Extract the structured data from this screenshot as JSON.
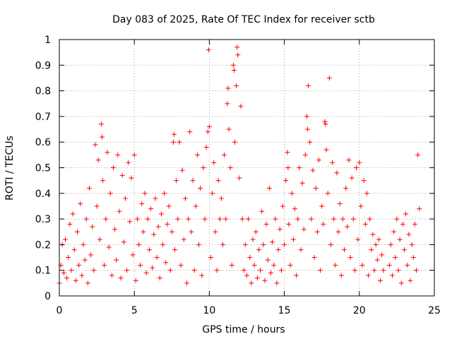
{
  "chart_data": {
    "type": "scatter",
    "title": "Day 083 of 2025, Rate Of TEC Index for receiver sctb",
    "xlabel": "GPS time / hours",
    "ylabel": "ROTI / TECUs",
    "xlim": [
      0,
      25
    ],
    "ylim": [
      0,
      1
    ],
    "x_ticks": [
      "0",
      "5",
      "10",
      "15",
      "20",
      "25"
    ],
    "y_ticks": [
      "0",
      "0.1",
      "0.2",
      "0.3",
      "0.4",
      "0.5",
      "0.6",
      "0.7",
      "0.8",
      "0.9",
      "1"
    ],
    "grid": true,
    "legend": "none",
    "marker": "plus",
    "color": "#ff0000",
    "series": [
      {
        "values": [
          [
            0.0,
            0.05
          ],
          [
            0.1,
            0.12
          ],
          [
            0.2,
            0.2
          ],
          [
            0.3,
            0.09
          ],
          [
            0.4,
            0.22
          ],
          [
            0.5,
            0.07
          ],
          [
            0.6,
            0.15
          ],
          [
            0.7,
            0.28
          ],
          [
            0.8,
            0.1
          ],
          [
            0.9,
            0.32
          ],
          [
            1.0,
            0.18
          ],
          [
            1.1,
            0.06
          ],
          [
            1.2,
            0.25
          ],
          [
            1.3,
            0.12
          ],
          [
            1.4,
            0.36
          ],
          [
            1.5,
            0.08
          ],
          [
            1.6,
            0.2
          ],
          [
            1.7,
            0.14
          ],
          [
            1.8,
            0.3
          ],
          [
            1.9,
            0.05
          ],
          [
            2.0,
            0.42
          ],
          [
            2.1,
            0.16
          ],
          [
            2.2,
            0.27
          ],
          [
            2.3,
            0.1
          ],
          [
            2.4,
            0.59
          ],
          [
            2.5,
            0.35
          ],
          [
            2.6,
            0.53
          ],
          [
            2.7,
            0.22
          ],
          [
            2.8,
            0.67
          ],
          [
            2.85,
            0.62
          ],
          [
            2.9,
            0.45
          ],
          [
            3.0,
            0.12
          ],
          [
            3.1,
            0.3
          ],
          [
            3.2,
            0.56
          ],
          [
            3.3,
            0.19
          ],
          [
            3.4,
            0.4
          ],
          [
            3.5,
            0.08
          ],
          [
            3.6,
            0.5
          ],
          [
            3.7,
            0.26
          ],
          [
            3.8,
            0.14
          ],
          [
            3.9,
            0.55
          ],
          [
            4.0,
            0.33
          ],
          [
            4.1,
            0.07
          ],
          [
            4.2,
            0.47
          ],
          [
            4.3,
            0.21
          ],
          [
            4.4,
            0.38
          ],
          [
            4.5,
            0.1
          ],
          [
            4.6,
            0.52
          ],
          [
            4.7,
            0.29
          ],
          [
            4.8,
            0.46
          ],
          [
            4.9,
            0.16
          ],
          [
            5.0,
            0.55
          ],
          [
            5.1,
            0.06
          ],
          [
            5.2,
            0.3
          ],
          [
            5.3,
            0.2
          ],
          [
            5.4,
            0.12
          ],
          [
            5.5,
            0.36
          ],
          [
            5.6,
            0.25
          ],
          [
            5.7,
            0.4
          ],
          [
            5.8,
            0.09
          ],
          [
            5.9,
            0.3
          ],
          [
            6.0,
            0.18
          ],
          [
            6.1,
            0.34
          ],
          [
            6.2,
            0.11
          ],
          [
            6.3,
            0.24
          ],
          [
            6.4,
            0.38
          ],
          [
            6.5,
            0.15
          ],
          [
            6.6,
            0.27
          ],
          [
            6.7,
            0.07
          ],
          [
            6.8,
            0.32
          ],
          [
            6.9,
            0.2
          ],
          [
            7.0,
            0.4
          ],
          [
            7.1,
            0.13
          ],
          [
            7.2,
            0.28
          ],
          [
            7.3,
            0.35
          ],
          [
            7.4,
            0.1
          ],
          [
            7.5,
            0.25
          ],
          [
            7.6,
            0.6
          ],
          [
            7.65,
            0.63
          ],
          [
            7.7,
            0.18
          ],
          [
            7.8,
            0.45
          ],
          [
            7.9,
            0.3
          ],
          [
            8.0,
            0.6
          ],
          [
            8.1,
            0.12
          ],
          [
            8.2,
            0.49
          ],
          [
            8.3,
            0.22
          ],
          [
            8.4,
            0.38
          ],
          [
            8.5,
            0.05
          ],
          [
            8.6,
            0.3
          ],
          [
            8.7,
            0.64
          ],
          [
            8.8,
            0.25
          ],
          [
            8.9,
            0.45
          ],
          [
            9.0,
            0.1
          ],
          [
            9.1,
            0.35
          ],
          [
            9.2,
            0.55
          ],
          [
            9.3,
            0.2
          ],
          [
            9.4,
            0.42
          ],
          [
            9.5,
            0.08
          ],
          [
            9.6,
            0.5
          ],
          [
            9.7,
            0.3
          ],
          [
            9.8,
            0.58
          ],
          [
            9.9,
            0.64
          ],
          [
            9.95,
            0.96
          ],
          [
            10.0,
            0.66
          ],
          [
            10.1,
            0.15
          ],
          [
            10.2,
            0.4
          ],
          [
            10.3,
            0.52
          ],
          [
            10.4,
            0.25
          ],
          [
            10.5,
            0.1
          ],
          [
            10.6,
            0.45
          ],
          [
            10.7,
            0.3
          ],
          [
            10.8,
            0.38
          ],
          [
            10.9,
            0.2
          ],
          [
            11.0,
            0.55
          ],
          [
            11.1,
            0.3
          ],
          [
            11.2,
            0.75
          ],
          [
            11.25,
            0.81
          ],
          [
            11.3,
            0.65
          ],
          [
            11.4,
            0.5
          ],
          [
            11.5,
            0.12
          ],
          [
            11.6,
            0.9
          ],
          [
            11.65,
            0.88
          ],
          [
            11.7,
            0.6
          ],
          [
            11.8,
            0.82
          ],
          [
            11.85,
            0.97
          ],
          [
            11.9,
            0.94
          ],
          [
            12.0,
            0.46
          ],
          [
            12.1,
            0.74
          ],
          [
            12.2,
            0.3
          ],
          [
            12.3,
            0.1
          ],
          [
            12.4,
            0.2
          ],
          [
            12.5,
            0.08
          ],
          [
            12.6,
            0.3
          ],
          [
            12.7,
            0.15
          ],
          [
            12.8,
            0.05
          ],
          [
            12.9,
            0.22
          ],
          [
            13.0,
            0.12
          ],
          [
            13.1,
            0.25
          ],
          [
            13.2,
            0.07
          ],
          [
            13.3,
            0.18
          ],
          [
            13.4,
            0.1
          ],
          [
            13.5,
            0.33
          ],
          [
            13.6,
            0.2
          ],
          [
            13.7,
            0.06
          ],
          [
            13.8,
            0.28
          ],
          [
            13.9,
            0.14
          ],
          [
            14.0,
            0.42
          ],
          [
            14.1,
            0.09
          ],
          [
            14.2,
            0.21
          ],
          [
            14.3,
            0.12
          ],
          [
            14.4,
            0.3
          ],
          [
            14.5,
            0.05
          ],
          [
            14.6,
            0.18
          ],
          [
            14.7,
            0.26
          ],
          [
            14.8,
            0.1
          ],
          [
            14.9,
            0.35
          ],
          [
            15.0,
            0.2
          ],
          [
            15.1,
            0.45
          ],
          [
            15.2,
            0.56
          ],
          [
            15.25,
            0.5
          ],
          [
            15.3,
            0.28
          ],
          [
            15.4,
            0.12
          ],
          [
            15.5,
            0.4
          ],
          [
            15.6,
            0.22
          ],
          [
            15.7,
            0.34
          ],
          [
            15.8,
            0.08
          ],
          [
            15.9,
            0.3
          ],
          [
            16.0,
            0.5
          ],
          [
            16.1,
            0.18
          ],
          [
            16.2,
            0.44
          ],
          [
            16.3,
            0.26
          ],
          [
            16.4,
            0.55
          ],
          [
            16.5,
            0.7
          ],
          [
            16.55,
            0.65
          ],
          [
            16.6,
            0.82
          ],
          [
            16.7,
            0.6
          ],
          [
            16.8,
            0.3
          ],
          [
            16.9,
            0.49
          ],
          [
            17.0,
            0.15
          ],
          [
            17.1,
            0.42
          ],
          [
            17.2,
            0.25
          ],
          [
            17.3,
            0.53
          ],
          [
            17.4,
            0.1
          ],
          [
            17.5,
            0.35
          ],
          [
            17.6,
            0.28
          ],
          [
            17.7,
            0.68
          ],
          [
            17.75,
            0.67
          ],
          [
            17.8,
            0.57
          ],
          [
            17.9,
            0.4
          ],
          [
            18.0,
            0.85
          ],
          [
            18.1,
            0.2
          ],
          [
            18.2,
            0.52
          ],
          [
            18.3,
            0.3
          ],
          [
            18.4,
            0.12
          ],
          [
            18.5,
            0.48
          ],
          [
            18.6,
            0.25
          ],
          [
            18.7,
            0.36
          ],
          [
            18.8,
            0.08
          ],
          [
            18.9,
            0.3
          ],
          [
            19.0,
            0.18
          ],
          [
            19.1,
            0.42
          ],
          [
            19.2,
            0.27
          ],
          [
            19.3,
            0.53
          ],
          [
            19.4,
            0.15
          ],
          [
            19.5,
            0.46
          ],
          [
            19.6,
            0.3
          ],
          [
            19.7,
            0.1
          ],
          [
            19.8,
            0.5
          ],
          [
            19.9,
            0.22
          ],
          [
            20.0,
            0.52
          ],
          [
            20.1,
            0.35
          ],
          [
            20.2,
            0.12
          ],
          [
            20.3,
            0.45
          ],
          [
            20.4,
            0.28
          ],
          [
            20.5,
            0.4
          ],
          [
            20.6,
            0.08
          ],
          [
            20.7,
            0.3
          ],
          [
            20.8,
            0.18
          ],
          [
            20.9,
            0.24
          ],
          [
            21.0,
            0.1
          ],
          [
            21.1,
            0.2
          ],
          [
            21.2,
            0.14
          ],
          [
            21.3,
            0.22
          ],
          [
            21.4,
            0.06
          ],
          [
            21.5,
            0.16
          ],
          [
            21.6,
            0.1
          ],
          [
            22.0,
            0.12
          ],
          [
            22.1,
            0.2
          ],
          [
            22.2,
            0.08
          ],
          [
            22.3,
            0.25
          ],
          [
            22.4,
            0.15
          ],
          [
            22.5,
            0.3
          ],
          [
            22.6,
            0.1
          ],
          [
            22.7,
            0.22
          ],
          [
            22.8,
            0.05
          ],
          [
            22.9,
            0.28
          ],
          [
            23.0,
            0.18
          ],
          [
            23.1,
            0.32
          ],
          [
            23.2,
            0.12
          ],
          [
            23.3,
            0.24
          ],
          [
            23.4,
            0.06
          ],
          [
            23.5,
            0.2
          ],
          [
            23.6,
            0.15
          ],
          [
            23.7,
            0.28
          ],
          [
            23.8,
            0.1
          ],
          [
            23.9,
            0.55
          ],
          [
            24.0,
            0.34
          ]
        ]
      }
    ]
  }
}
